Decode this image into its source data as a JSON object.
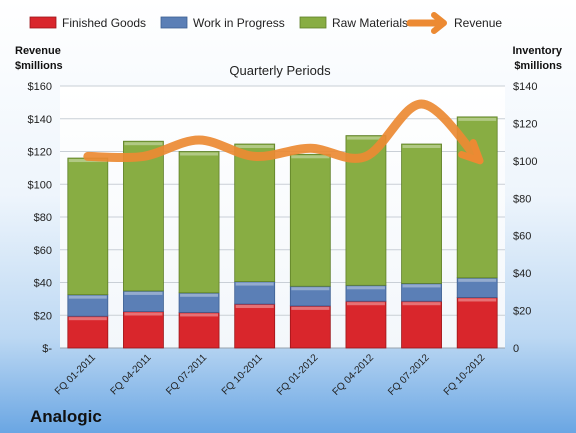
{
  "chart_data": {
    "type": "bar",
    "subtitle": "Quarterly Periods",
    "left_axis_label": [
      "Revenue",
      "$millions"
    ],
    "right_axis_label": [
      "Inventory",
      "$millions"
    ],
    "categories": [
      "FQ 01-2011",
      "FQ 04-2011",
      "FQ 07-2011",
      "FQ 10-2011",
      "FQ 01-2012",
      "FQ 04-2012",
      "FQ 07-2012",
      "FQ 10-2012"
    ],
    "stack_series": [
      {
        "name": "Finished Goods",
        "color": "#d9262c",
        "values": [
          17,
          19.5,
          19,
          23.5,
          22.5,
          25,
          25,
          27
        ]
      },
      {
        "name": "Work in Progress",
        "color": "#5b7fb6",
        "values": [
          11.5,
          11,
          10.5,
          12,
          10.5,
          8.5,
          9.5,
          10.5
        ]
      },
      {
        "name": "Raw Materials",
        "color": "#88ad43",
        "values": [
          73,
          80,
          75.5,
          73.5,
          70.5,
          80,
          74.5,
          86
        ]
      }
    ],
    "line_series": {
      "name": "Revenue",
      "color": "#ec8a33",
      "values": [
        117,
        117,
        127,
        117,
        122,
        117,
        149,
        116
      ]
    },
    "left_axis": {
      "min": 0,
      "max": 160,
      "step": 20,
      "tick_labels": [
        "$-",
        "$20",
        "$40",
        "$60",
        "$80",
        "$100",
        "$120",
        "$140",
        "$160"
      ]
    },
    "right_axis": {
      "min": 0,
      "max": 140,
      "step": 20,
      "tick_labels": [
        "0",
        "$20",
        "$40",
        "$60",
        "$80",
        "$100",
        "$120",
        "$140"
      ]
    },
    "legend_position": "top",
    "grid": true
  },
  "brand": "Analogic"
}
